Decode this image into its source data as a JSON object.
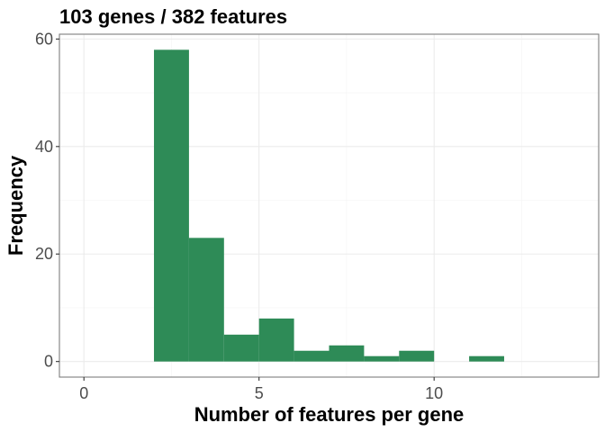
{
  "chart_data": {
    "type": "bar",
    "title": "103 genes / 382 features",
    "xlabel": "Number of features per gene",
    "ylabel": "Frequency",
    "bar_color": "#2E8B57",
    "bin_width": 1,
    "bins": [
      {
        "x0": 2,
        "x1": 3,
        "value": 58
      },
      {
        "x0": 3,
        "x1": 4,
        "value": 23
      },
      {
        "x0": 4,
        "x1": 5,
        "value": 5
      },
      {
        "x0": 5,
        "x1": 6,
        "value": 8
      },
      {
        "x0": 6,
        "x1": 7,
        "value": 2
      },
      {
        "x0": 7,
        "x1": 8,
        "value": 3
      },
      {
        "x0": 8,
        "x1": 9,
        "value": 1
      },
      {
        "x0": 9,
        "x1": 10,
        "value": 2
      },
      {
        "x0": 10,
        "x1": 11,
        "value": 0
      },
      {
        "x0": 11,
        "x1": 12,
        "value": 1
      }
    ],
    "xlim": [
      -0.7,
      14.7
    ],
    "ylim": [
      -2.9,
      60.9
    ],
    "x_ticks": [
      0,
      5,
      10
    ],
    "x_tick_labels": [
      "0",
      "5",
      "10"
    ],
    "y_ticks": [
      0,
      20,
      40,
      60
    ],
    "y_tick_labels": [
      "0",
      "20",
      "40",
      "60"
    ],
    "grid": true
  }
}
